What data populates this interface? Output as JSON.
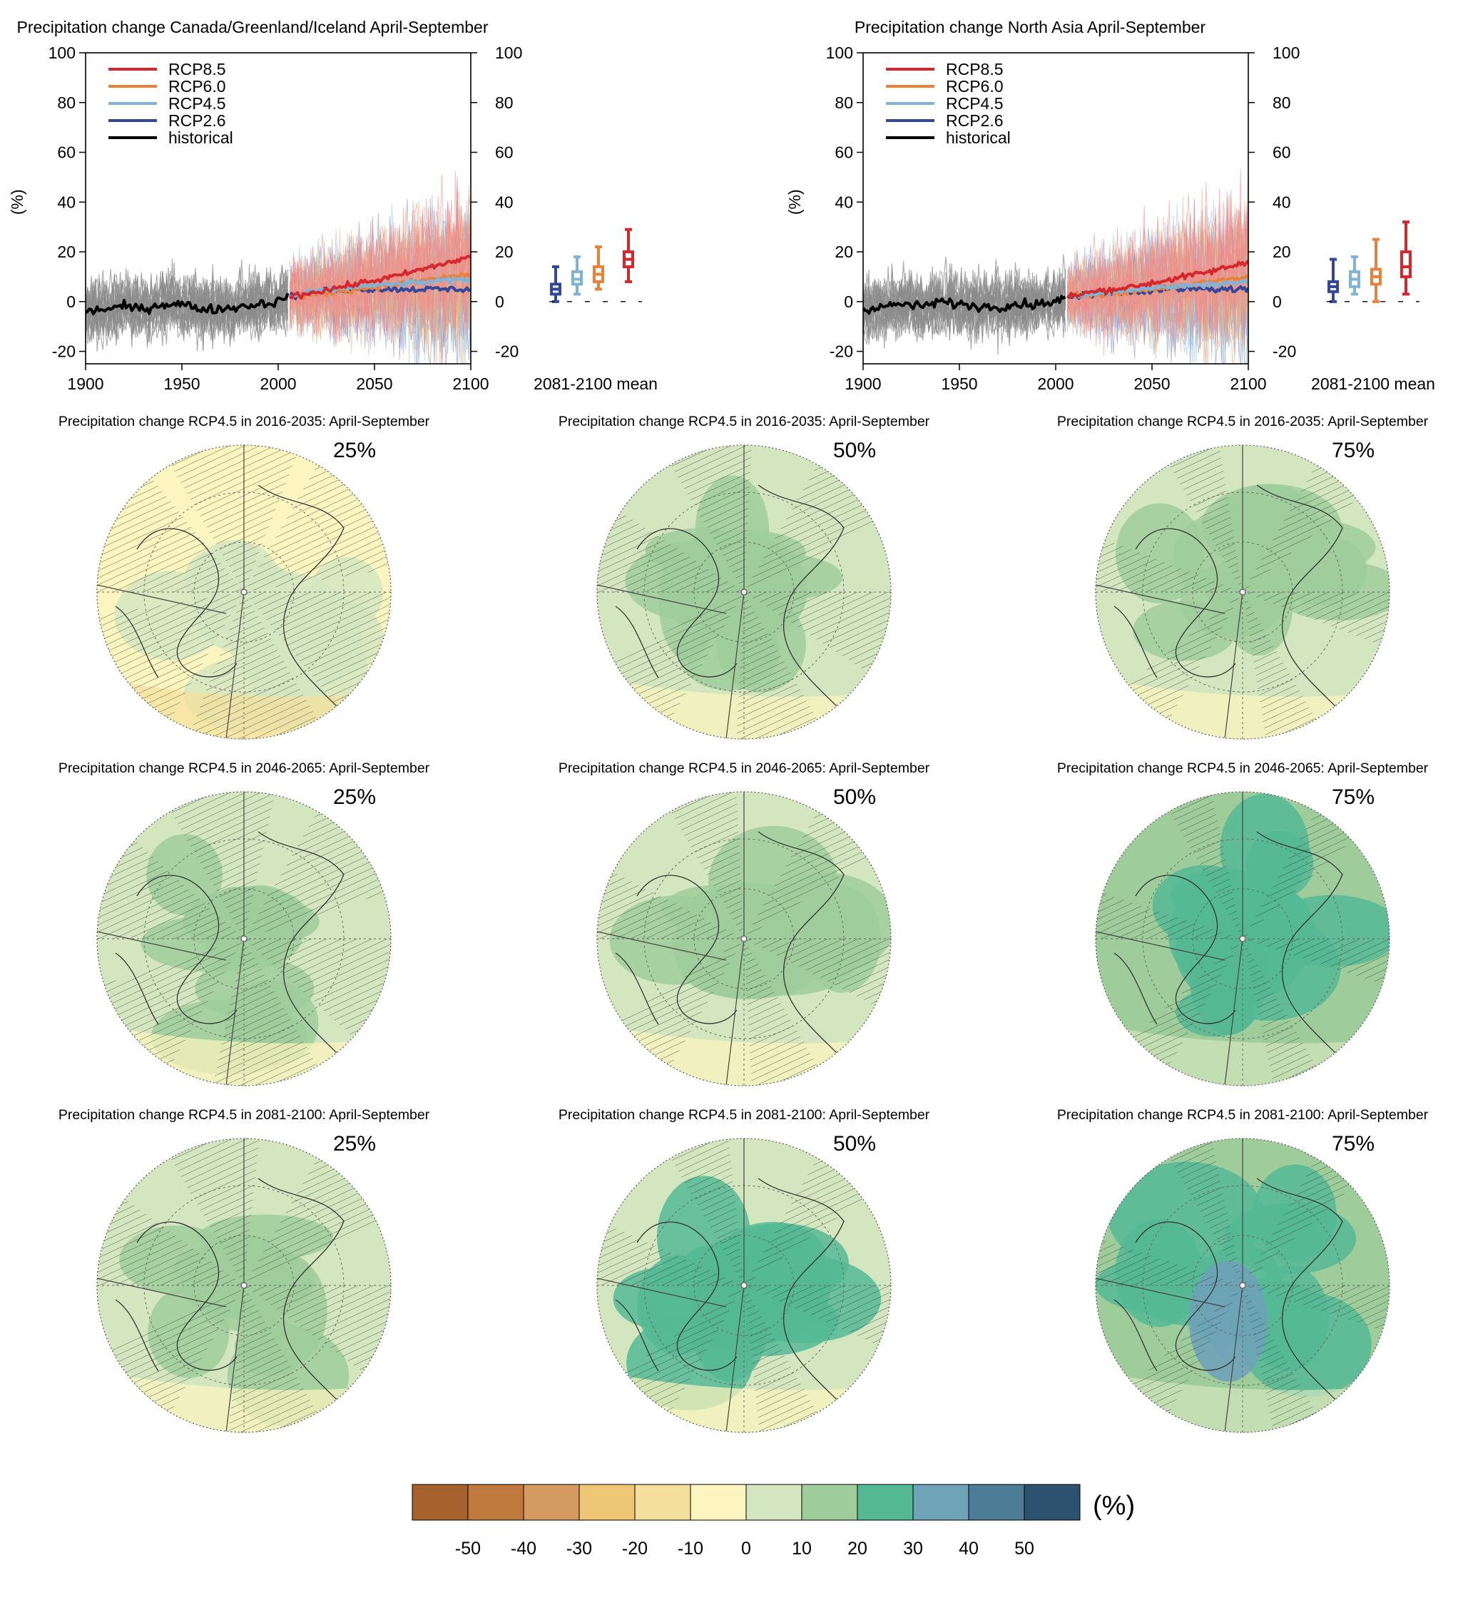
{
  "chart_data": {
    "type": "composite",
    "timeseries": [
      {
        "type": "line",
        "title": "Precipitation change Canada/Greenland/Iceland April-September",
        "ylabel": "(%)",
        "xlim": [
          1900,
          2100
        ],
        "ylim": [
          -25,
          100
        ],
        "x_ticks": [
          1900,
          1950,
          2000,
          2050,
          2100
        ],
        "y_ticks": [
          -20,
          0,
          20,
          40,
          60,
          80,
          100
        ],
        "series": [
          {
            "name": "RCP8.5",
            "color": "#d7272c",
            "x": [
              2006,
              2020,
              2040,
              2060,
              2080,
              2100
            ],
            "y": [
              2,
              4,
              7,
              10,
              14,
              18
            ]
          },
          {
            "name": "RCP6.0",
            "color": "#e8813a",
            "x": [
              2006,
              2020,
              2040,
              2060,
              2080,
              2100
            ],
            "y": [
              2,
              3,
              5,
              7,
              9,
              11
            ]
          },
          {
            "name": "RCP4.5",
            "color": "#7fb3d7",
            "x": [
              2006,
              2020,
              2040,
              2060,
              2080,
              2100
            ],
            "y": [
              2,
              4,
              6,
              7,
              8,
              9
            ]
          },
          {
            "name": "RCP2.6",
            "color": "#33479b",
            "x": [
              2006,
              2020,
              2040,
              2060,
              2080,
              2100
            ],
            "y": [
              2,
              4,
              5,
              5,
              5,
              5
            ]
          },
          {
            "name": "historical",
            "color": "#000000",
            "x": [
              1900,
              1910,
              1920,
              1930,
              1940,
              1950,
              1960,
              1970,
              1980,
              1990,
              2000,
              2005
            ],
            "y": [
              -4,
              -3,
              -2,
              -3,
              -1,
              -1,
              -3,
              -3,
              -2,
              -1,
              0,
              2
            ]
          }
        ],
        "boxplot": {
          "label": "2081-2100 mean",
          "boxes": [
            {
              "series": "RCP2.6",
              "min": 0,
              "q1": 3,
              "median": 5,
              "q3": 7,
              "max": 14
            },
            {
              "series": "RCP4.5",
              "min": 3,
              "q1": 7,
              "median": 9,
              "q3": 12,
              "max": 18
            },
            {
              "series": "RCP6.0",
              "min": 5,
              "q1": 8,
              "median": 11,
              "q3": 14,
              "max": 22
            },
            {
              "series": "RCP8.5",
              "min": 8,
              "q1": 14,
              "median": 17,
              "q3": 20,
              "max": 29
            }
          ]
        }
      },
      {
        "type": "line",
        "title": "Precipitation change North Asia April-September",
        "ylabel": "(%)",
        "xlim": [
          1900,
          2100
        ],
        "ylim": [
          -25,
          100
        ],
        "x_ticks": [
          1900,
          1950,
          2000,
          2050,
          2100
        ],
        "y_ticks": [
          -20,
          0,
          20,
          40,
          60,
          80,
          100
        ],
        "series": [
          {
            "name": "RCP8.5",
            "color": "#d7272c",
            "x": [
              2006,
              2020,
              2040,
              2060,
              2080,
              2100
            ],
            "y": [
              2,
              4,
              6,
              9,
              12,
              16
            ]
          },
          {
            "name": "RCP6.0",
            "color": "#e8813a",
            "x": [
              2006,
              2020,
              2040,
              2060,
              2080,
              2100
            ],
            "y": [
              2,
              3,
              4,
              6,
              8,
              10
            ]
          },
          {
            "name": "RCP4.5",
            "color": "#7fb3d7",
            "x": [
              2006,
              2020,
              2040,
              2060,
              2080,
              2100
            ],
            "y": [
              2,
              3,
              5,
              6,
              7,
              8
            ]
          },
          {
            "name": "RCP2.6",
            "color": "#33479b",
            "x": [
              2006,
              2020,
              2040,
              2060,
              2080,
              2100
            ],
            "y": [
              2,
              3,
              4,
              5,
              5,
              5
            ]
          },
          {
            "name": "historical",
            "color": "#000000",
            "x": [
              1900,
              1910,
              1920,
              1930,
              1940,
              1950,
              1960,
              1970,
              1980,
              1990,
              2000,
              2005
            ],
            "y": [
              -3,
              -2,
              -1,
              -2,
              0,
              -1,
              -2,
              -2,
              -1,
              -1,
              0,
              2
            ]
          }
        ],
        "boxplot": {
          "label": "2081-2100 mean",
          "boxes": [
            {
              "series": "RCP2.6",
              "min": 0,
              "q1": 4,
              "median": 6,
              "q3": 8,
              "max": 17
            },
            {
              "series": "RCP4.5",
              "min": 3,
              "q1": 6,
              "median": 9,
              "q3": 12,
              "max": 18
            },
            {
              "series": "RCP6.0",
              "min": 0,
              "q1": 7,
              "median": 10,
              "q3": 13,
              "max": 25
            },
            {
              "series": "RCP8.5",
              "min": 3,
              "q1": 10,
              "median": 14,
              "q3": 20,
              "max": 32
            }
          ]
        }
      }
    ],
    "maps": {
      "type": "heatmap",
      "rows": [
        {
          "title": "Precipitation change RCP4.5 in 2016-2035: April-September",
          "panels": [
            {
              "percentile": "25%",
              "typical_change": -3,
              "wet_patch_change": 5
            },
            {
              "percentile": "50%",
              "typical_change": 5,
              "wet_patch_change": 12
            },
            {
              "percentile": "75%",
              "typical_change": 8,
              "wet_patch_change": 15
            }
          ]
        },
        {
          "title": "Precipitation change RCP4.5 in 2046-2065: April-September",
          "panels": [
            {
              "percentile": "25%",
              "typical_change": 2,
              "wet_patch_change": 12
            },
            {
              "percentile": "50%",
              "typical_change": 7,
              "wet_patch_change": 15
            },
            {
              "percentile": "75%",
              "typical_change": 10,
              "wet_patch_change": 20
            }
          ]
        },
        {
          "title": "Precipitation change RCP4.5 in 2081-2100: April-September",
          "panels": [
            {
              "percentile": "25%",
              "typical_change": 3,
              "wet_patch_change": 12
            },
            {
              "percentile": "50%",
              "typical_change": 8,
              "wet_patch_change": 20
            },
            {
              "percentile": "75%",
              "typical_change": 12,
              "wet_patch_change": 25
            }
          ]
        }
      ]
    },
    "colorbar": {
      "unit": "(%)",
      "ticks": [
        "-50",
        "-40",
        "-30",
        "-20",
        "-10",
        "0",
        "10",
        "20",
        "30",
        "40",
        "50"
      ],
      "colors": [
        "#a6612c",
        "#c07a3d",
        "#d59a60",
        "#efc676",
        "#f5df9c",
        "#fdf5bf",
        "#d4e6bf",
        "#9fcc9b",
        "#55b895",
        "#6ea3b8",
        "#4d7c96",
        "#2c5270"
      ]
    }
  }
}
